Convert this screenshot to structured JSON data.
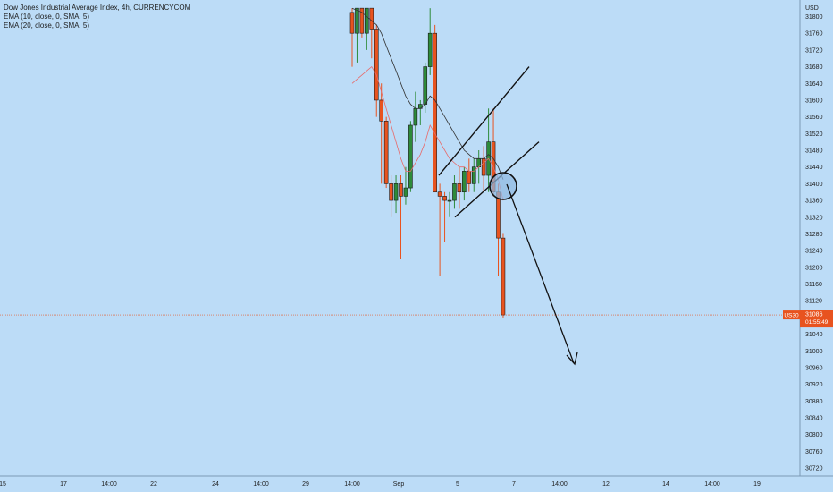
{
  "header": {
    "title": "Dow Jones Industrial Average Index, 4h, CURRENCYCOM",
    "ema1": "EMA (10, close, 0, SMA, 5)",
    "ema2": "EMA (20, close, 0, SMA, 5)"
  },
  "price_axis": {
    "currency": "USD",
    "ticks": [
      "31800",
      "31760",
      "31720",
      "31680",
      "31640",
      "31600",
      "31560",
      "31520",
      "31480",
      "31440",
      "31400",
      "31360",
      "31320",
      "31280",
      "31240",
      "31200",
      "31160",
      "31120",
      "31040",
      "31000",
      "30960",
      "30920",
      "30880",
      "30840",
      "30800",
      "30760",
      "30720"
    ]
  },
  "time_axis": {
    "ticks": [
      "15",
      "17",
      "14:00",
      "22",
      "24",
      "14:00",
      "29",
      "14:00",
      "Sep",
      "5",
      "7",
      "14:00",
      "12",
      "14",
      "14:00",
      "19"
    ]
  },
  "current_price": {
    "symbol": "US30",
    "price": "31086",
    "countdown": "01:55:49",
    "value": 31086
  },
  "colors": {
    "background": "#bcdcf7",
    "bull": "#2e8b3a",
    "bear": "#e8531f",
    "ema_fast": "#e86a6a",
    "ema_slow": "#333333",
    "price_line": "#e8531f",
    "circle_fill": "#8fb8e0"
  },
  "chart_data": {
    "type": "candlestick",
    "title": "Dow Jones Industrial Average Index, 4h, CURRENCYCOM",
    "ylim": [
      30700,
      31820
    ],
    "y_unit": "USD",
    "candles": [
      {
        "open": 31810,
        "high": 31820,
        "low": 31680,
        "close": 31760
      },
      {
        "open": 31760,
        "high": 31820,
        "low": 31690,
        "close": 31820
      },
      {
        "open": 31820,
        "high": 31820,
        "low": 31750,
        "close": 31760
      },
      {
        "open": 31760,
        "high": 31820,
        "low": 31720,
        "close": 31820
      },
      {
        "open": 31820,
        "high": 31820,
        "low": 31700,
        "close": 31770
      },
      {
        "open": 31770,
        "high": 31780,
        "low": 31560,
        "close": 31600
      },
      {
        "open": 31600,
        "high": 31640,
        "low": 31400,
        "close": 31550
      },
      {
        "open": 31550,
        "high": 31560,
        "low": 31390,
        "close": 31400
      },
      {
        "open": 31400,
        "high": 31420,
        "low": 31320,
        "close": 31360
      },
      {
        "open": 31360,
        "high": 31420,
        "low": 31330,
        "close": 31400
      },
      {
        "open": 31400,
        "high": 31420,
        "low": 31220,
        "close": 31370
      },
      {
        "open": 31370,
        "high": 31440,
        "low": 31350,
        "close": 31390
      },
      {
        "open": 31390,
        "high": 31550,
        "low": 31380,
        "close": 31540
      },
      {
        "open": 31540,
        "high": 31620,
        "low": 31500,
        "close": 31580
      },
      {
        "open": 31580,
        "high": 31600,
        "low": 31540,
        "close": 31590
      },
      {
        "open": 31590,
        "high": 31690,
        "low": 31570,
        "close": 31680
      },
      {
        "open": 31680,
        "high": 31820,
        "low": 31660,
        "close": 31760
      },
      {
        "open": 31760,
        "high": 31780,
        "low": 31380,
        "close": 31380
      },
      {
        "open": 31380,
        "high": 31400,
        "low": 31180,
        "close": 31370
      },
      {
        "open": 31370,
        "high": 31380,
        "low": 31260,
        "close": 31360
      },
      {
        "open": 31360,
        "high": 31380,
        "low": 31320,
        "close": 31360
      },
      {
        "open": 31360,
        "high": 31420,
        "low": 31340,
        "close": 31400
      },
      {
        "open": 31400,
        "high": 31440,
        "low": 31340,
        "close": 31380
      },
      {
        "open": 31380,
        "high": 31440,
        "low": 31360,
        "close": 31430
      },
      {
        "open": 31430,
        "high": 31460,
        "low": 31380,
        "close": 31400
      },
      {
        "open": 31400,
        "high": 31460,
        "low": 31380,
        "close": 31440
      },
      {
        "open": 31440,
        "high": 31480,
        "low": 31400,
        "close": 31460
      },
      {
        "open": 31460,
        "high": 31490,
        "low": 31380,
        "close": 31420
      },
      {
        "open": 31420,
        "high": 31580,
        "low": 31380,
        "close": 31500
      },
      {
        "open": 31500,
        "high": 31580,
        "low": 31370,
        "close": 31380
      },
      {
        "open": 31380,
        "high": 31400,
        "low": 31180,
        "close": 31270
      },
      {
        "open": 31270,
        "high": 31280,
        "low": 31080,
        "close": 31086
      }
    ],
    "ema_fast": [
      31640,
      31650,
      31660,
      31670,
      31680,
      31660,
      31620,
      31580,
      31540,
      31500,
      31460,
      31430,
      31430,
      31450,
      31470,
      31500,
      31540,
      31520,
      31500,
      31480,
      31460,
      31450,
      31440,
      31440,
      31430,
      31430,
      31440,
      31450,
      31460,
      31440,
      31410,
      31360
    ],
    "ema_slow": [
      31820,
      31815,
      31810,
      31800,
      31790,
      31780,
      31760,
      31730,
      31700,
      31670,
      31640,
      31610,
      31590,
      31580,
      31580,
      31590,
      31610,
      31600,
      31580,
      31560,
      31540,
      31520,
      31500,
      31480,
      31470,
      31460,
      31460,
      31460,
      31470,
      31460,
      31440,
      31410
    ],
    "channel_upper": [
      [
        31420,
        31600
      ],
      [
        31600,
        31680
      ]
    ],
    "channel_lower": [
      [
        31320,
        31440
      ],
      [
        31490,
        31500
      ]
    ]
  }
}
